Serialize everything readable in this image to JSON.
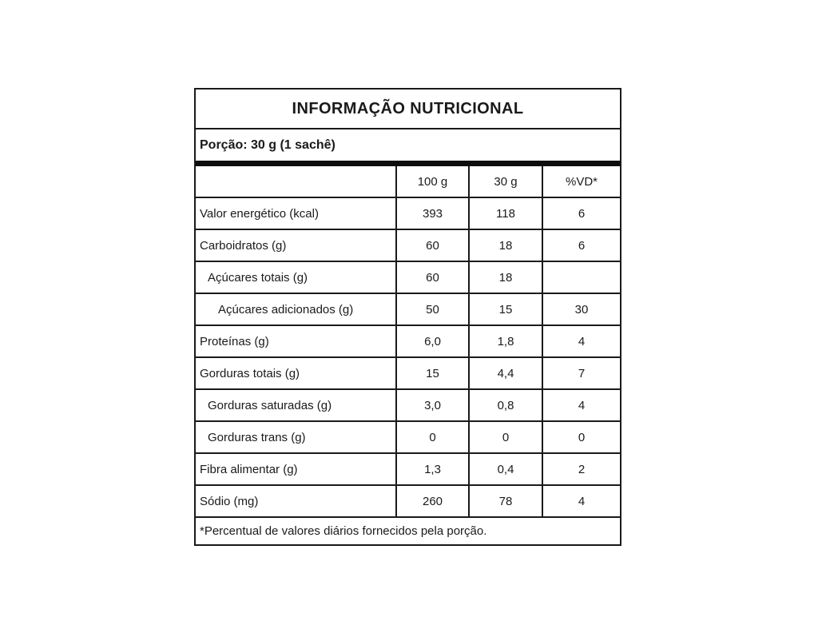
{
  "colors": {
    "background": "#ffffff",
    "border": "#1a1a1a",
    "text": "#1a1a1a",
    "divider_bar": "#0d0d0d"
  },
  "table": {
    "title": "INFORMAÇÃO NUTRICIONAL",
    "portion": "Porção: 30 g (1 sachê)",
    "columns": [
      "100 g",
      "30 g",
      "%VD*"
    ],
    "rows": [
      {
        "label": "Valor energético (kcal)",
        "indent": 0,
        "per100g": "393",
        "per30g": "118",
        "vd": "6"
      },
      {
        "label": "Carboidratos (g)",
        "indent": 0,
        "per100g": "60",
        "per30g": "18",
        "vd": "6"
      },
      {
        "label": "Açúcares totais (g)",
        "indent": 1,
        "per100g": "60",
        "per30g": "18",
        "vd": ""
      },
      {
        "label": "Açúcares adicionados (g)",
        "indent": 2,
        "per100g": "50",
        "per30g": "15",
        "vd": "30"
      },
      {
        "label": "Proteínas (g)",
        "indent": 0,
        "per100g": "6,0",
        "per30g": "1,8",
        "vd": "4"
      },
      {
        "label": "Gorduras totais (g)",
        "indent": 0,
        "per100g": "15",
        "per30g": "4,4",
        "vd": "7"
      },
      {
        "label": "Gorduras saturadas (g)",
        "indent": 1,
        "per100g": "3,0",
        "per30g": "0,8",
        "vd": "4"
      },
      {
        "label": "Gorduras trans (g)",
        "indent": 1,
        "per100g": "0",
        "per30g": "0",
        "vd": "0"
      },
      {
        "label": "Fibra alimentar (g)",
        "indent": 0,
        "per100g": "1,3",
        "per30g": "0,4",
        "vd": "2"
      },
      {
        "label": "Sódio (mg)",
        "indent": 0,
        "per100g": "260",
        "per30g": "78",
        "vd": "4"
      }
    ],
    "footnote": "*Percentual de valores diários fornecidos pela porção."
  }
}
